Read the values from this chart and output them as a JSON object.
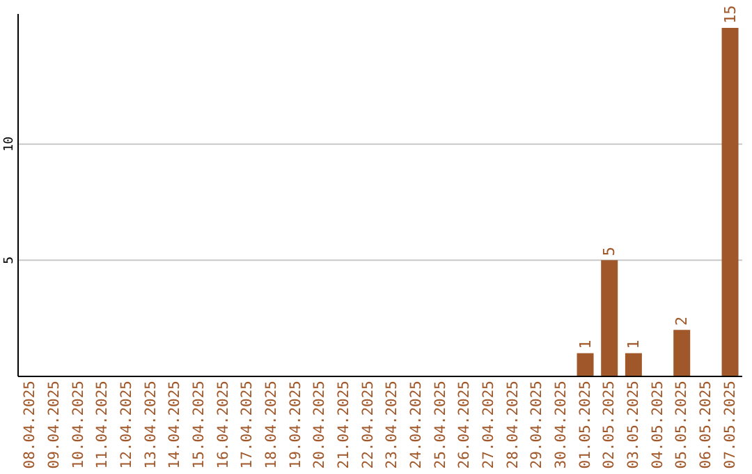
{
  "chart_data": {
    "type": "bar",
    "categories": [
      "08.04.2025",
      "09.04.2025",
      "10.04.2025",
      "11.04.2025",
      "12.04.2025",
      "13.04.2025",
      "14.04.2025",
      "15.04.2025",
      "16.04.2025",
      "17.04.2025",
      "18.04.2025",
      "19.04.2025",
      "20.04.2025",
      "21.04.2025",
      "22.04.2025",
      "23.04.2025",
      "24.04.2025",
      "25.04.2025",
      "26.04.2025",
      "27.04.2025",
      "28.04.2025",
      "29.04.2025",
      "30.04.2025",
      "01.05.2025",
      "02.05.2025",
      "03.05.2025",
      "04.05.2025",
      "05.05.2025",
      "06.05.2025",
      "07.05.2025"
    ],
    "values": [
      0,
      0,
      0,
      0,
      0,
      0,
      0,
      0,
      0,
      0,
      0,
      0,
      0,
      0,
      0,
      0,
      0,
      0,
      0,
      0,
      0,
      0,
      0,
      1,
      5,
      1,
      0,
      2,
      0,
      15
    ],
    "value_labels": [
      null,
      null,
      null,
      null,
      null,
      null,
      null,
      null,
      null,
      null,
      null,
      null,
      null,
      null,
      null,
      null,
      null,
      null,
      null,
      null,
      null,
      null,
      null,
      "1",
      "5",
      "1",
      null,
      "2",
      null,
      "15"
    ],
    "color": "#a0582a",
    "ylim": [
      0,
      15.6
    ],
    "yticks": [
      5,
      10
    ],
    "grid": "y"
  }
}
